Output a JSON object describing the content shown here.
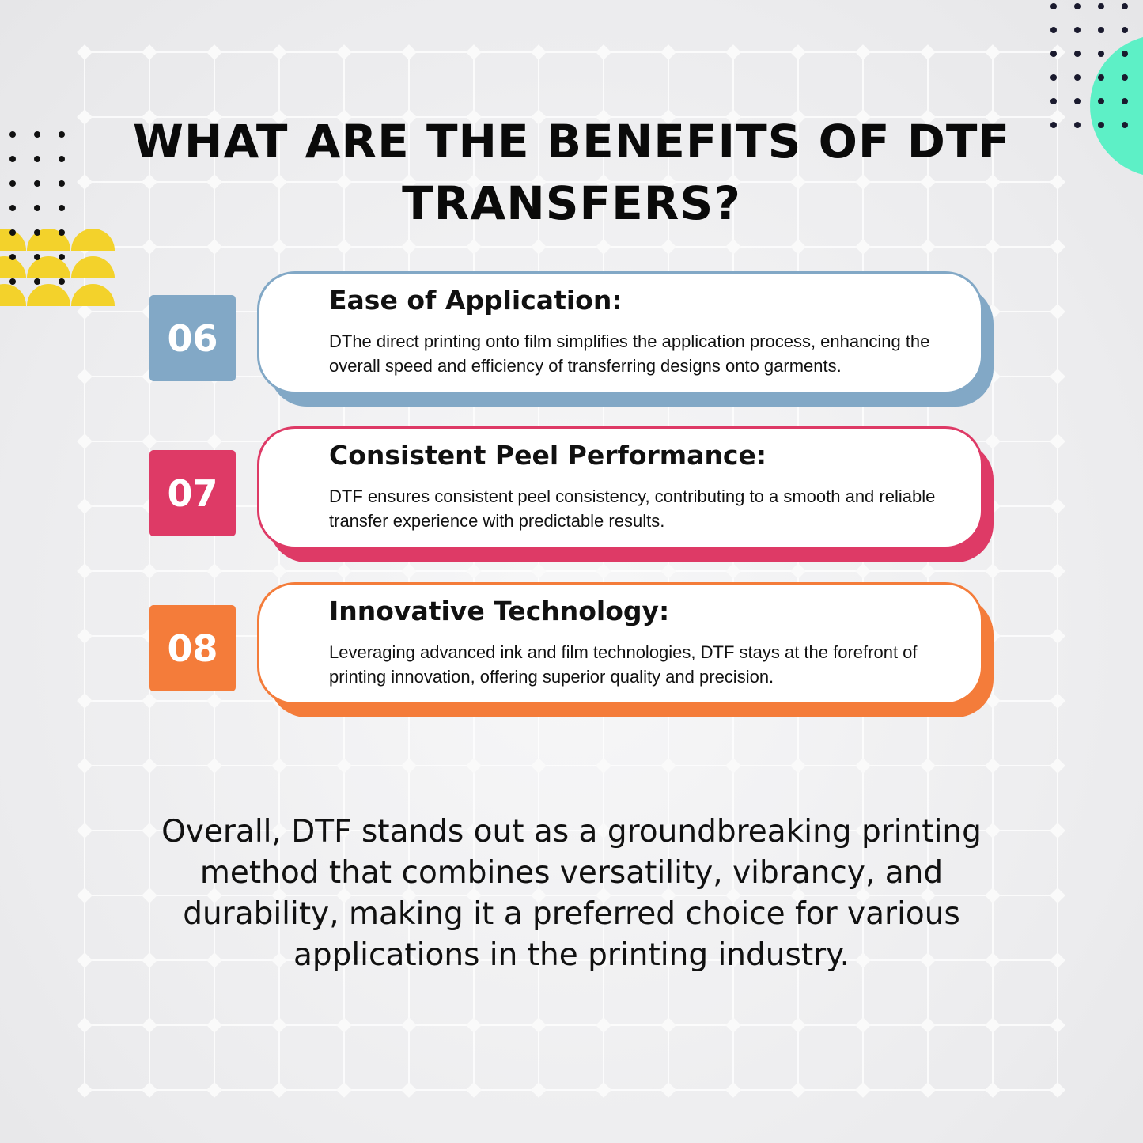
{
  "title": "WHAT ARE THE BENEFITS OF DTF TRANSFERS?",
  "benefits": [
    {
      "number": "06",
      "heading": "Ease of Application:",
      "text": "DThe direct printing onto film simplifies the application process, enhancing the overall speed and efficiency of transferring designs onto garments.",
      "color": "#82a8c6"
    },
    {
      "number": "07",
      "heading": "Consistent Peel Performance:",
      "text": "DTF ensures consistent peel consistency, contributing to a smooth and reliable transfer experience with predictable results.",
      "color": "#de3a66"
    },
    {
      "number": "08",
      "heading": "Innovative Technology:",
      "text": "Leveraging advanced ink and film technologies, DTF stays at the forefront of printing innovation, offering superior quality and precision.",
      "color": "#f47c3a"
    }
  ],
  "summary": "Overall, DTF stands out as a groundbreaking printing method that combines versatility, vibrancy, and durability, making it a preferred choice for various applications in the printing industry.",
  "colors": {
    "accent_mint": "#5df0c6",
    "accent_yellow": "#f3d22b",
    "dots": "#1a1a2e"
  }
}
